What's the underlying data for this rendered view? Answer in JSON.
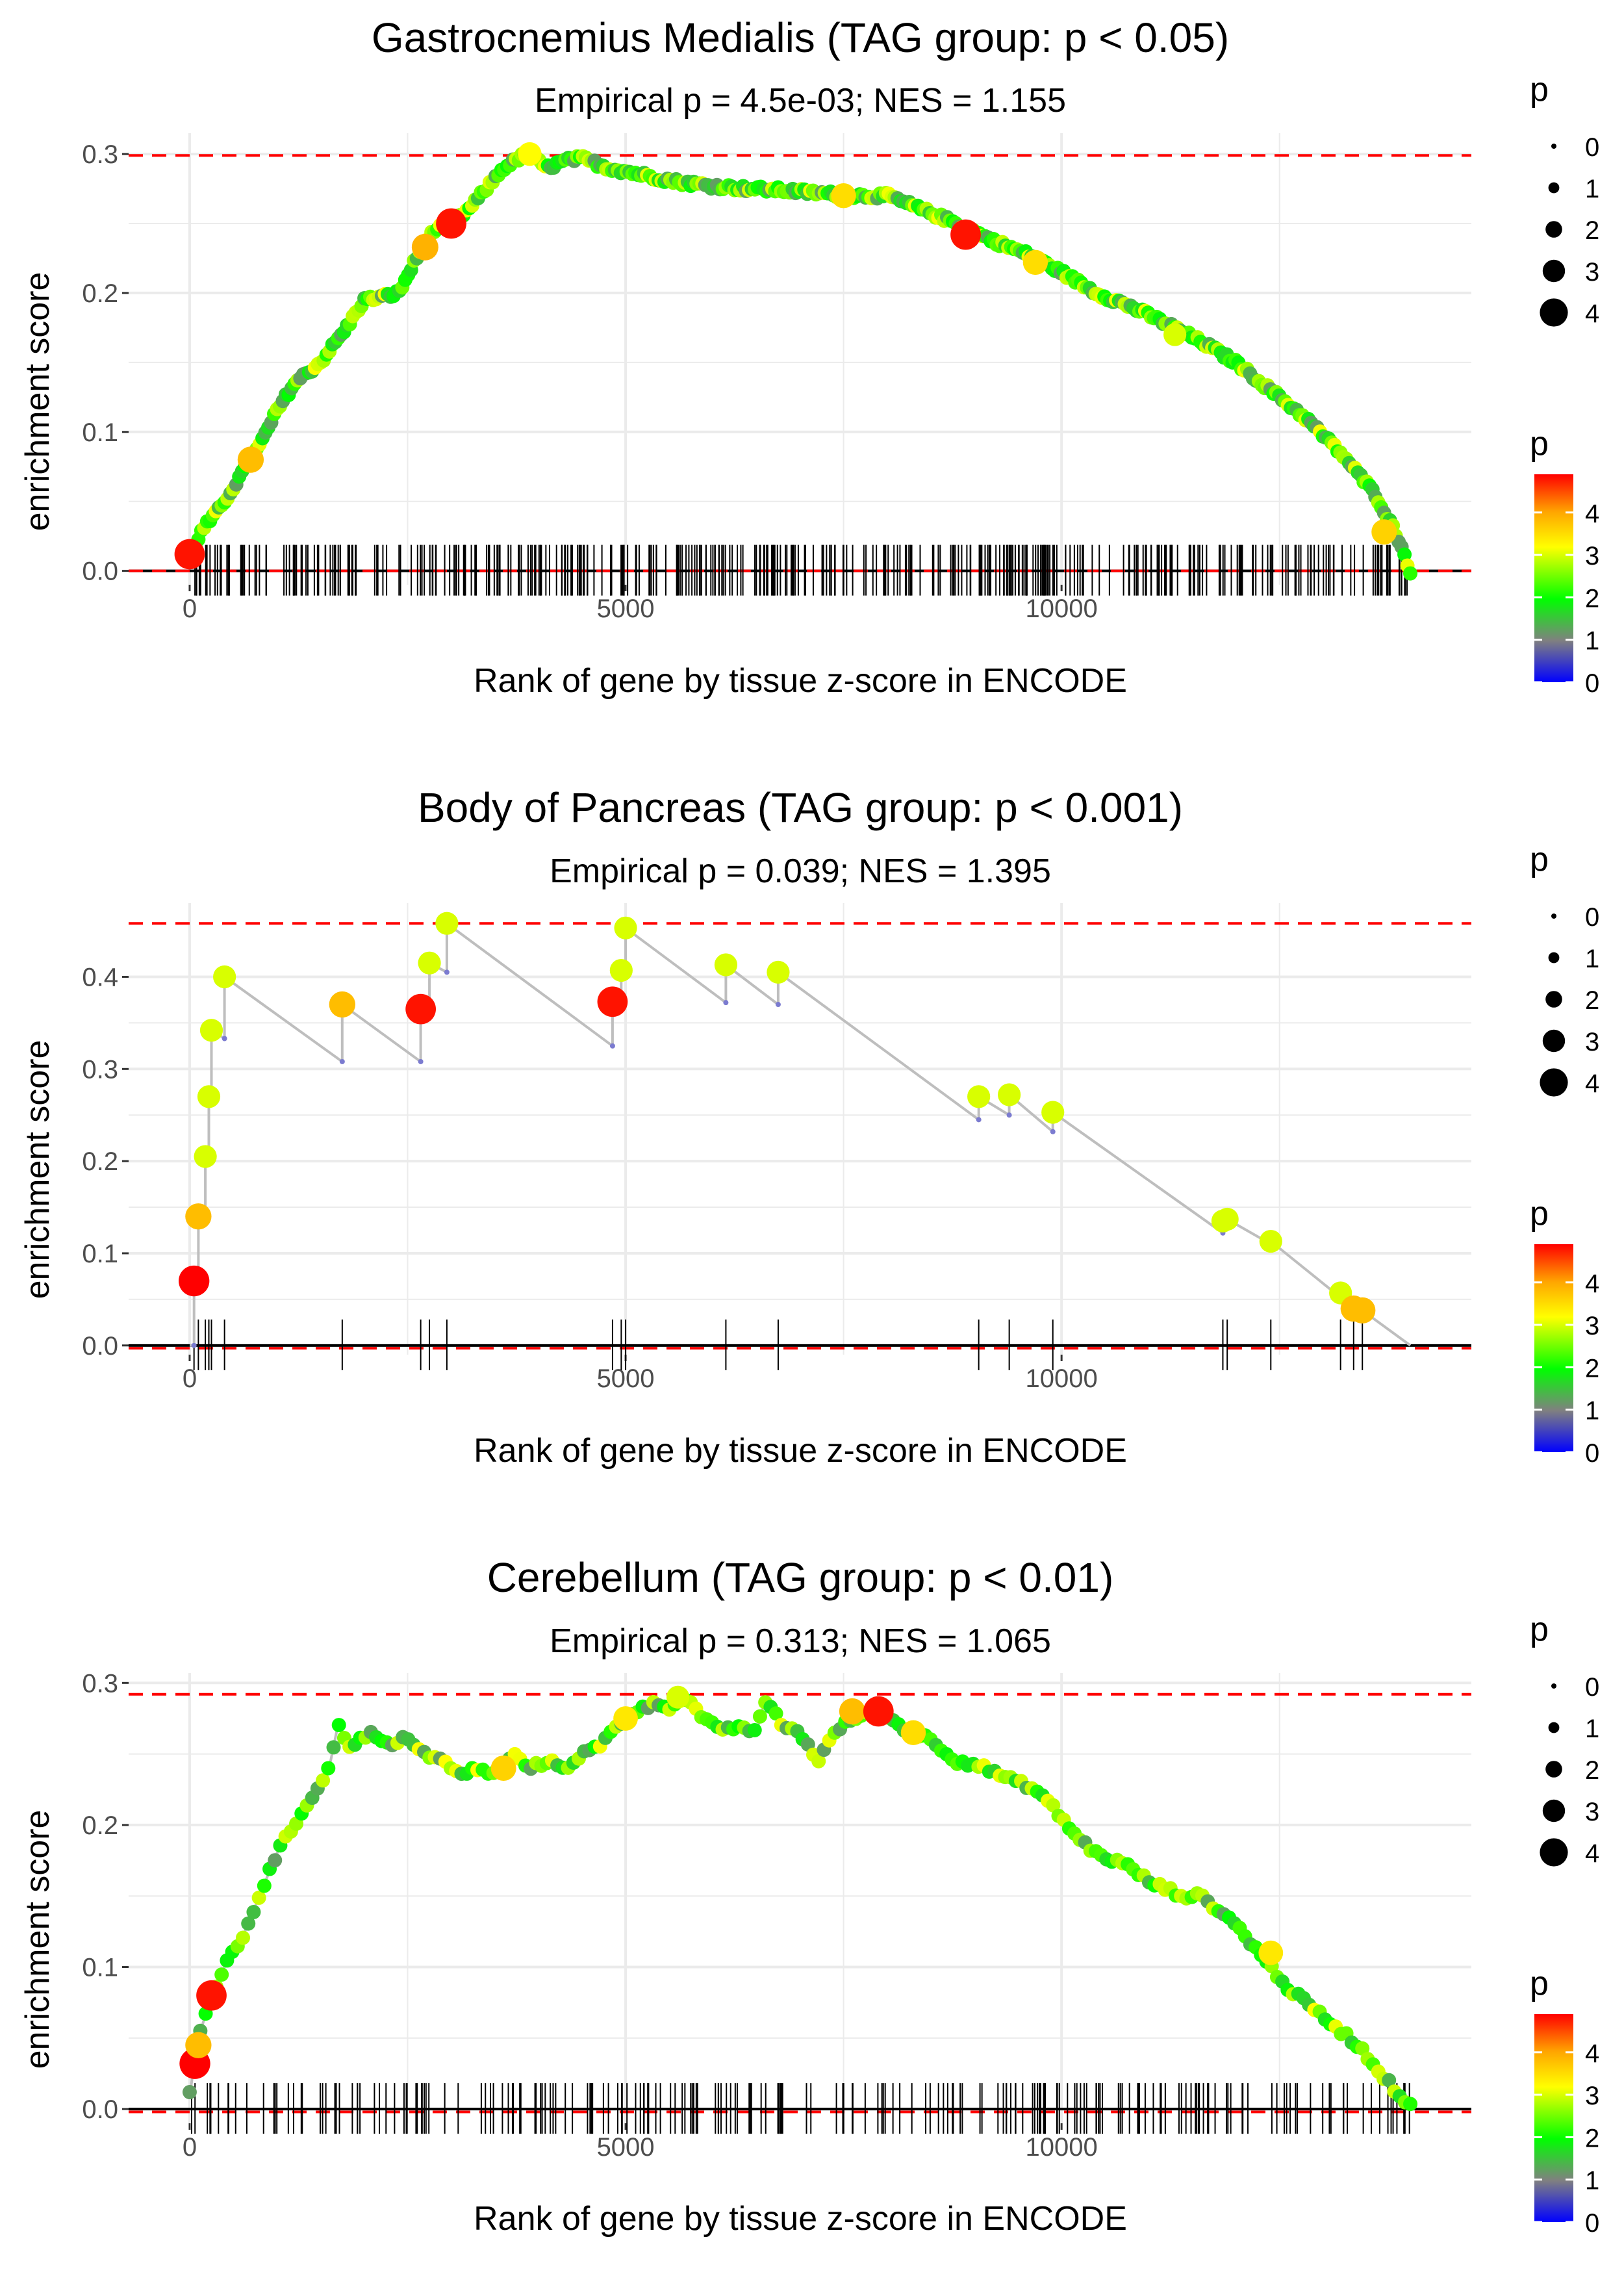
{
  "chart_data": [
    {
      "type": "line",
      "title": "Gastrocnemius Medialis (TAG group: p < 0.05)",
      "subtitle": "Empirical p = 4.5e-03; NES = 1.155",
      "xlabel": "Rank of gene by tissue z-score in ENCODE",
      "ylabel": "enrichment score",
      "xlim": [
        -700,
        14700
      ],
      "ylim": [
        -0.01,
        0.315
      ],
      "xticks": [
        0,
        5000,
        10000
      ],
      "xtick_labels": [
        "0",
        "5000",
        "10000"
      ],
      "yticks": [
        0.0,
        0.1,
        0.2,
        0.3
      ],
      "ytick_labels": [
        "0.0",
        "0.1",
        "0.2",
        "0.3"
      ],
      "max_es": 0.299,
      "min_es": 0.0,
      "grid": true,
      "curve": {
        "x": [
          0,
          150,
          350,
          600,
          800,
          1000,
          1200,
          1500,
          1800,
          2000,
          2200,
          2400,
          2600,
          2800,
          3000,
          3200,
          3400,
          3600,
          3800,
          3900,
          4100,
          4300,
          4500,
          4800,
          5200,
          5600,
          6000,
          6400,
          6800,
          7200,
          7600,
          8000,
          8400,
          8800,
          9200,
          9600,
          10000,
          10400,
          10800,
          11200,
          11600,
          12000,
          12400,
          12800,
          13200,
          13600,
          13850,
          14000
        ],
        "y": [
          0.01,
          0.03,
          0.045,
          0.07,
          0.09,
          0.115,
          0.135,
          0.15,
          0.175,
          0.195,
          0.197,
          0.2,
          0.225,
          0.245,
          0.25,
          0.26,
          0.275,
          0.29,
          0.298,
          0.299,
          0.29,
          0.295,
          0.297,
          0.29,
          0.285,
          0.28,
          0.277,
          0.275,
          0.274,
          0.272,
          0.27,
          0.27,
          0.26,
          0.25,
          0.238,
          0.228,
          0.215,
          0.2,
          0.19,
          0.178,
          0.165,
          0.15,
          0.13,
          0.11,
          0.085,
          0.055,
          0.025,
          0.0
        ]
      },
      "highlight_points": [
        {
          "x": 0,
          "y": 0.012,
          "p": 4.8
        },
        {
          "x": 700,
          "y": 0.08,
          "p": 3.8
        },
        {
          "x": 2700,
          "y": 0.233,
          "p": 3.9
        },
        {
          "x": 3000,
          "y": 0.25,
          "p": 4.8
        },
        {
          "x": 3900,
          "y": 0.3,
          "p": 3.2
        },
        {
          "x": 7500,
          "y": 0.27,
          "p": 3.5
        },
        {
          "x": 8900,
          "y": 0.242,
          "p": 4.8
        },
        {
          "x": 9700,
          "y": 0.222,
          "p": 3.5
        },
        {
          "x": 11300,
          "y": 0.17,
          "p": 3.0
        },
        {
          "x": 13700,
          "y": 0.028,
          "p": 3.6
        }
      ],
      "n_rugs": 420
    },
    {
      "type": "line",
      "title": "Body of Pancreas (TAG group: p < 0.001)",
      "subtitle": "Empirical p = 0.039; NES = 1.395",
      "xlabel": "Rank of gene by tissue z-score in ENCODE",
      "ylabel": "enrichment score",
      "xlim": [
        -700,
        14700
      ],
      "ylim": [
        -0.01,
        0.48
      ],
      "xticks": [
        0,
        5000,
        10000
      ],
      "xtick_labels": [
        "0",
        "5000",
        "10000"
      ],
      "yticks": [
        0.0,
        0.1,
        0.2,
        0.3,
        0.4
      ],
      "ytick_labels": [
        "0.0",
        "0.1",
        "0.2",
        "0.3",
        "0.4"
      ],
      "max_es": 0.458,
      "min_es": -0.003,
      "grid": true,
      "steps": [
        {
          "x": 50,
          "base": 0.0,
          "top": 0.07,
          "p": 4.9
        },
        {
          "x": 100,
          "base": 0.068,
          "top": 0.14,
          "p": 3.8
        },
        {
          "x": 180,
          "base": 0.136,
          "top": 0.205,
          "p": 3.0
        },
        {
          "x": 220,
          "base": 0.203,
          "top": 0.27,
          "p": 3.0
        },
        {
          "x": 250,
          "base": 0.27,
          "top": 0.342,
          "p": 3.0
        },
        {
          "x": 400,
          "base": 0.333,
          "top": 0.4,
          "p": 3.0
        },
        {
          "x": 1750,
          "base": 0.308,
          "top": 0.37,
          "p": 3.8
        },
        {
          "x": 2650,
          "base": 0.308,
          "top": 0.365,
          "p": 4.8
        },
        {
          "x": 2750,
          "base": 0.36,
          "top": 0.415,
          "p": 3.0
        },
        {
          "x": 2950,
          "base": 0.405,
          "top": 0.458,
          "p": 3.0
        },
        {
          "x": 4850,
          "base": 0.325,
          "top": 0.373,
          "p": 4.8
        },
        {
          "x": 4950,
          "base": 0.368,
          "top": 0.407,
          "p": 3.0
        },
        {
          "x": 5000,
          "base": 0.405,
          "top": 0.453,
          "p": 3.0
        },
        {
          "x": 6150,
          "base": 0.372,
          "top": 0.413,
          "p": 3.0
        },
        {
          "x": 6750,
          "base": 0.37,
          "top": 0.405,
          "p": 3.0
        },
        {
          "x": 9050,
          "base": 0.245,
          "top": 0.27,
          "p": 3.0
        },
        {
          "x": 9400,
          "base": 0.25,
          "top": 0.272,
          "p": 3.0
        },
        {
          "x": 9900,
          "base": 0.232,
          "top": 0.253,
          "p": 3.0
        },
        {
          "x": 11850,
          "base": 0.122,
          "top": 0.135,
          "p": 3.0
        },
        {
          "x": 11900,
          "base": 0.133,
          "top": 0.137,
          "p": 3.0
        },
        {
          "x": 12400,
          "base": 0.11,
          "top": 0.113,
          "p": 3.0
        },
        {
          "x": 13200,
          "base": 0.052,
          "top": 0.057,
          "p": 3.0
        },
        {
          "x": 13350,
          "base": 0.038,
          "top": 0.04,
          "p": 3.8
        },
        {
          "x": 13450,
          "base": 0.036,
          "top": 0.038,
          "p": 3.8
        }
      ],
      "end_x": 14000,
      "end_y": 0.0
    },
    {
      "type": "line",
      "title": "Cerebellum (TAG group: p < 0.01)",
      "subtitle": "Empirical p = 0.313; NES = 1.065",
      "xlabel": "Rank of gene by tissue z-score in ENCODE",
      "ylabel": "enrichment score",
      "xlim": [
        -700,
        14700
      ],
      "ylim": [
        -0.01,
        0.307
      ],
      "xticks": [
        0,
        5000,
        10000
      ],
      "xtick_labels": [
        "0",
        "5000",
        "10000"
      ],
      "yticks": [
        0.0,
        0.1,
        0.2,
        0.3
      ],
      "ytick_labels": [
        "0.0",
        "0.1",
        "0.2",
        "0.3"
      ],
      "max_es": 0.292,
      "min_es": -0.002,
      "grid": true,
      "curve": {
        "x": [
          0,
          100,
          250,
          400,
          600,
          800,
          1000,
          1200,
          1400,
          1600,
          1700,
          1850,
          2050,
          2300,
          2500,
          2700,
          2900,
          3100,
          3300,
          3500,
          3700,
          3900,
          4100,
          4300,
          4500,
          4700,
          4900,
          5100,
          5300,
          5500,
          5650,
          5900,
          6100,
          6300,
          6500,
          6600,
          6800,
          7000,
          7200,
          7400,
          7600,
          7900,
          8200,
          8500,
          8800,
          9000,
          9200,
          9400,
          9600,
          9800,
          10000,
          10200,
          10400,
          10600,
          10800,
          11000,
          11200,
          11400,
          11600,
          11800,
          12000,
          12200,
          12400,
          12600,
          12800,
          13000,
          13200,
          13400,
          13600,
          13800,
          14000
        ],
        "y": [
          0.01,
          0.05,
          0.08,
          0.1,
          0.12,
          0.15,
          0.18,
          0.2,
          0.22,
          0.24,
          0.27,
          0.255,
          0.265,
          0.255,
          0.262,
          0.25,
          0.245,
          0.235,
          0.24,
          0.235,
          0.25,
          0.24,
          0.245,
          0.24,
          0.25,
          0.255,
          0.27,
          0.28,
          0.285,
          0.283,
          0.292,
          0.275,
          0.265,
          0.27,
          0.265,
          0.288,
          0.27,
          0.265,
          0.245,
          0.265,
          0.275,
          0.28,
          0.268,
          0.26,
          0.245,
          0.243,
          0.238,
          0.232,
          0.228,
          0.22,
          0.205,
          0.19,
          0.18,
          0.175,
          0.17,
          0.16,
          0.155,
          0.15,
          0.15,
          0.14,
          0.13,
          0.115,
          0.1,
          0.085,
          0.075,
          0.065,
          0.055,
          0.045,
          0.03,
          0.015,
          0.003
        ]
      },
      "highlight_points": [
        {
          "x": 60,
          "y": 0.032,
          "p": 4.9
        },
        {
          "x": 100,
          "y": 0.045,
          "p": 3.8
        },
        {
          "x": 250,
          "y": 0.08,
          "p": 4.8
        },
        {
          "x": 3600,
          "y": 0.24,
          "p": 3.6
        },
        {
          "x": 5000,
          "y": 0.275,
          "p": 3.4
        },
        {
          "x": 5600,
          "y": 0.29,
          "p": 3.0
        },
        {
          "x": 7600,
          "y": 0.28,
          "p": 3.8
        },
        {
          "x": 7900,
          "y": 0.28,
          "p": 4.8
        },
        {
          "x": 8300,
          "y": 0.265,
          "p": 3.5
        },
        {
          "x": 12400,
          "y": 0.11,
          "p": 3.4
        }
      ],
      "n_rugs": 230
    }
  ],
  "legends": {
    "size_title": "p",
    "size_labels": [
      "0",
      "1",
      "2",
      "3",
      "4"
    ],
    "color_title": "p",
    "color_labels": [
      "4",
      "3",
      "2",
      "1",
      "0"
    ],
    "color_range": [
      0,
      4.9
    ],
    "colors": {
      "low": "#0000ff",
      "mid_low": "#808080",
      "mid": "#00ff00",
      "mid_high": "#ffff00",
      "high_orange": "#ffa500",
      "high": "#ff0000",
      "line": "#bebebe",
      "dashed": "#ff0000",
      "grid": "#ebebeb"
    }
  }
}
